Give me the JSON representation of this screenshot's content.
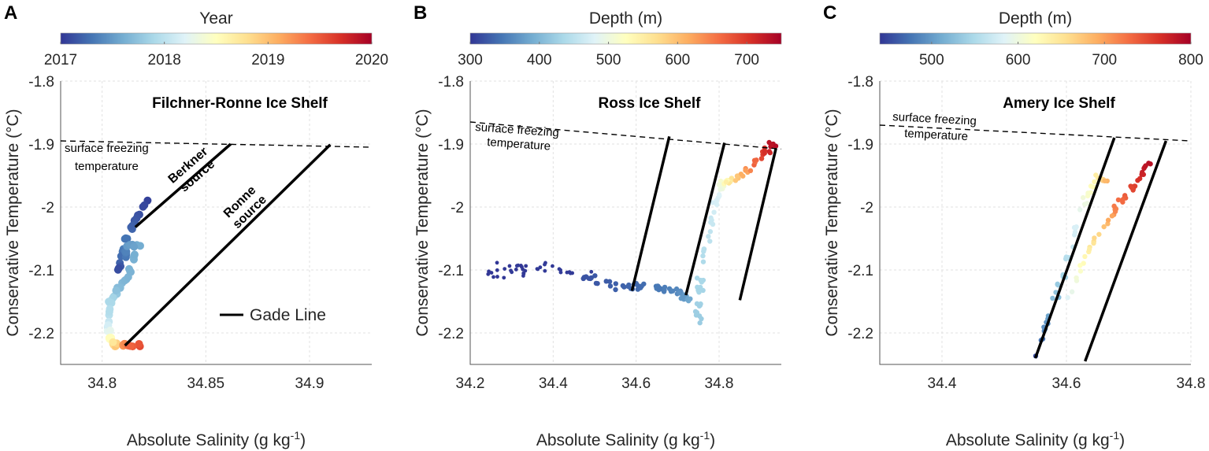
{
  "chart_data": [
    {
      "type": "scatter",
      "panel_letter": "A",
      "title": "Filchner-Ronne Ice Shelf",
      "xlabel_pre": "Absolute Salinity (g kg",
      "xlabel_sup": "-1",
      "xlabel_post": ")",
      "ylabel": "Conservative Temperature (°C)",
      "xlim": [
        34.78,
        34.93
      ],
      "ylim": [
        -2.25,
        -1.8
      ],
      "xticks": [
        34.8,
        34.85,
        34.9
      ],
      "xtick_labels": [
        "34.8",
        "34.85",
        "34.9"
      ],
      "yticks": [
        -1.8,
        -1.9,
        -2.0,
        -2.1,
        -2.2
      ],
      "ytick_labels": [
        "-1.8",
        "-1.9",
        "-2",
        "-2.1",
        "-2.2"
      ],
      "grid": true,
      "colorbar": {
        "label": "Year",
        "range": [
          2017,
          2020
        ],
        "ticks": [
          2017,
          2018,
          2019,
          2020
        ],
        "tick_labels": [
          "2017",
          "2018",
          "2019",
          "2020"
        ]
      },
      "freezing_line": [
        [
          34.78,
          -1.895
        ],
        [
          34.93,
          -1.905
        ]
      ],
      "freezing_label": [
        "surface freezing",
        "temperature"
      ],
      "gade_lines": [
        {
          "name": "Berkner source",
          "label_lines": [
            "Berkner",
            "source"
          ],
          "points": [
            [
              34.816,
              -2.032
            ],
            [
              34.862,
              -1.9
            ]
          ]
        },
        {
          "name": "Ronne source",
          "label_lines": [
            "Ronne",
            "source"
          ],
          "points": [
            [
              34.811,
              -2.22
            ],
            [
              34.91,
              -1.901
            ]
          ]
        }
      ],
      "legend": {
        "entries": [
          "Gade Line"
        ],
        "placement": "lower-right"
      },
      "series": [
        {
          "name": "profile",
          "spread": [
            0.0015,
            0.004
          ],
          "point_size": "large",
          "density": 6,
          "points": [
            [
              34.822,
              -1.99,
              2017.05
            ],
            [
              34.816,
              -2.02,
              2017.15
            ],
            [
              34.812,
              -2.05,
              2017.3
            ],
            [
              34.81,
              -2.07,
              2017.35
            ],
            [
              34.808,
              -2.1,
              2017.1
            ],
            [
              34.813,
              -2.06,
              2017.5
            ],
            [
              34.818,
              -2.06,
              2017.6
            ],
            [
              34.812,
              -2.11,
              2017.65
            ],
            [
              34.808,
              -2.13,
              2017.7
            ],
            [
              34.804,
              -2.15,
              2017.9
            ],
            [
              34.803,
              -2.18,
              2018.0
            ],
            [
              34.803,
              -2.2,
              2018.3
            ],
            [
              34.804,
              -2.215,
              2018.7
            ],
            [
              34.808,
              -2.22,
              2019.0
            ],
            [
              34.812,
              -2.22,
              2019.4
            ],
            [
              34.82,
              -2.22,
              2019.6
            ]
          ]
        }
      ]
    },
    {
      "type": "scatter",
      "panel_letter": "B",
      "title": "Ross Ice Shelf",
      "xlabel_pre": "Absolute Salinity (g kg",
      "xlabel_sup": "-1",
      "xlabel_post": ")",
      "ylabel": "Conservative Temperature (°C)",
      "xlim": [
        34.2,
        34.95
      ],
      "ylim": [
        -2.25,
        -1.8
      ],
      "xticks": [
        34.2,
        34.4,
        34.6,
        34.8
      ],
      "xtick_labels": [
        "34.2",
        "34.4",
        "34.6",
        "34.8"
      ],
      "yticks": [
        -1.8,
        -1.9,
        -2.0,
        -2.1,
        -2.2
      ],
      "ytick_labels": [
        "-1.8",
        "-1.9",
        "-2",
        "-2.1",
        "-2.2"
      ],
      "grid": true,
      "colorbar": {
        "label": "Depth (m)",
        "range": [
          300,
          750
        ],
        "ticks": [
          300,
          400,
          500,
          600,
          700
        ],
        "tick_labels": [
          "300",
          "400",
          "500",
          "600",
          "700"
        ]
      },
      "freezing_line": [
        [
          34.2,
          -1.865
        ],
        [
          34.95,
          -1.908
        ]
      ],
      "freezing_label": [
        "surface freezing",
        "temperature"
      ],
      "gade_lines": [
        {
          "name": "gade-1",
          "points": [
            [
              34.59,
              -2.133
            ],
            [
              34.68,
              -1.888
            ]
          ]
        },
        {
          "name": "gade-2",
          "points": [
            [
              34.72,
              -2.14
            ],
            [
              34.813,
              -1.898
            ]
          ]
        },
        {
          "name": "gade-3",
          "points": [
            [
              34.85,
              -2.148
            ],
            [
              34.937,
              -1.907
            ]
          ]
        }
      ],
      "series": [
        {
          "name": "scattered-fresh",
          "spread": [
            0.1,
            0.015
          ],
          "point_size": "small",
          "density": 40,
          "points": [
            [
              34.25,
              -2.1,
              300
            ],
            [
              34.45,
              -2.1,
              305
            ]
          ]
        },
        {
          "name": "shallow-band",
          "spread": [
            0.01,
            0.008
          ],
          "point_size": "medium",
          "density": 14,
          "points": [
            [
              34.47,
              -2.11,
              320
            ],
            [
              34.55,
              -2.125,
              330
            ],
            [
              34.62,
              -2.125,
              340
            ],
            [
              34.7,
              -2.135,
              360
            ],
            [
              34.73,
              -2.15,
              390
            ]
          ]
        },
        {
          "name": "deep-column",
          "spread": [
            0.012,
            0.01
          ],
          "point_size": "medium",
          "density": 10,
          "points": [
            [
              34.75,
              -2.19,
              420
            ],
            [
              34.75,
              -2.14,
              430
            ],
            [
              34.76,
              -2.08,
              440
            ],
            [
              34.78,
              -2.02,
              460
            ],
            [
              34.8,
              -1.98,
              480
            ],
            [
              34.81,
              -1.96,
              520
            ],
            [
              34.83,
              -1.96,
              570
            ],
            [
              34.87,
              -1.94,
              640
            ],
            [
              34.91,
              -1.915,
              700
            ],
            [
              34.93,
              -1.9,
              740
            ]
          ]
        }
      ]
    },
    {
      "type": "scatter",
      "panel_letter": "C",
      "title": "Amery Ice Shelf",
      "xlabel_pre": "Absolute Salinity (g kg",
      "xlabel_sup": "-1",
      "xlabel_post": ")",
      "ylabel": "Conservative Temperature (°C)",
      "xlim": [
        34.3,
        34.8
      ],
      "ylim": [
        -2.25,
        -1.8
      ],
      "xticks": [
        34.4,
        34.6,
        34.8
      ],
      "xtick_labels": [
        "34.4",
        "34.6",
        "34.8"
      ],
      "yticks": [
        -1.8,
        -1.9,
        -2.0,
        -2.1,
        -2.2
      ],
      "ytick_labels": [
        "-1.8",
        "-1.9",
        "-2",
        "-2.1",
        "-2.2"
      ],
      "grid": true,
      "colorbar": {
        "label": "Depth (m)",
        "range": [
          440,
          800
        ],
        "ticks": [
          500,
          600,
          700,
          800
        ],
        "tick_labels": [
          "500",
          "600",
          "700",
          "800"
        ]
      },
      "freezing_line": [
        [
          34.3,
          -1.87
        ],
        [
          34.8,
          -1.895
        ]
      ],
      "freezing_label": [
        "surface freezing",
        "temperature"
      ],
      "gade_lines": [
        {
          "name": "gade-1",
          "points": [
            [
              34.55,
              -2.24
            ],
            [
              34.677,
              -1.89
            ]
          ]
        },
        {
          "name": "gade-2",
          "points": [
            [
              34.63,
              -2.245
            ],
            [
              34.76,
              -1.895
            ]
          ]
        }
      ],
      "series": [
        {
          "name": "cold-limb",
          "spread": [
            0.008,
            0.006
          ],
          "point_size": "medium",
          "density": 8,
          "points": [
            [
              34.555,
              -2.24,
              450
            ],
            [
              34.57,
              -2.18,
              500
            ],
            [
              34.59,
              -2.12,
              540
            ],
            [
              34.61,
              -2.05,
              570
            ],
            [
              34.63,
              -1.99,
              600
            ],
            [
              34.65,
              -1.95,
              640
            ],
            [
              34.665,
              -1.96,
              690
            ]
          ]
        },
        {
          "name": "warm-limb",
          "spread": [
            0.008,
            0.006
          ],
          "point_size": "medium",
          "density": 8,
          "points": [
            [
              34.6,
              -2.15,
              580
            ],
            [
              34.63,
              -2.08,
              630
            ],
            [
              34.66,
              -2.03,
              680
            ],
            [
              34.68,
              -2.0,
              720
            ],
            [
              34.7,
              -1.98,
              740
            ],
            [
              34.72,
              -1.95,
              770
            ],
            [
              34.735,
              -1.93,
              790
            ]
          ]
        }
      ]
    }
  ]
}
